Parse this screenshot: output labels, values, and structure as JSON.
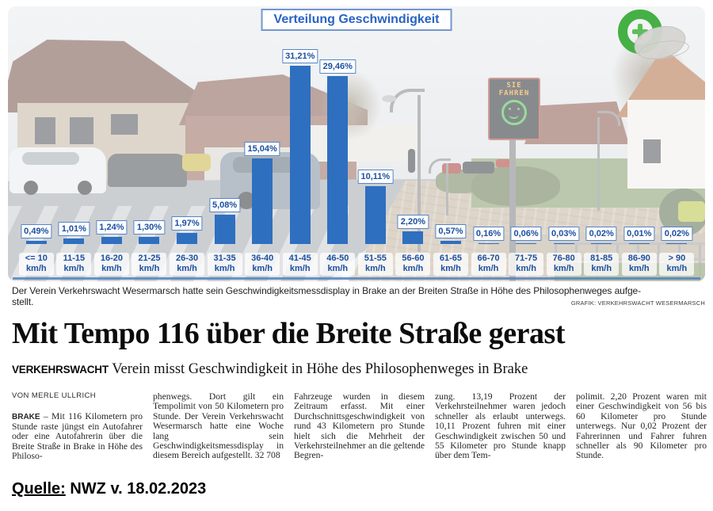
{
  "chart_data": {
    "type": "bar",
    "title": "Verteilung Geschwindigkeit",
    "categories": [
      "<= 10",
      "11-15",
      "16-20",
      "21-25",
      "26-30",
      "31-35",
      "36-40",
      "41-45",
      "46-50",
      "51-55",
      "56-60",
      "61-65",
      "66-70",
      "71-75",
      "76-80",
      "81-85",
      "86-90",
      "> 90"
    ],
    "unit": "km/h",
    "values": [
      0.49,
      1.01,
      1.24,
      1.3,
      1.97,
      5.08,
      15.04,
      31.21,
      29.46,
      10.11,
      2.2,
      0.57,
      0.16,
      0.06,
      0.03,
      0.02,
      0.01,
      0.02
    ],
    "value_labels": [
      "0,49%",
      "1,01%",
      "1,24%",
      "1,30%",
      "1,97%",
      "5,08%",
      "15,04%",
      "31,21%",
      "29,46%",
      "10,11%",
      "2,20%",
      "0,57%",
      "0,16%",
      "0,06%",
      "0,03%",
      "0,02%",
      "0,01%",
      "0,02%"
    ],
    "xlabel": "",
    "ylabel": "",
    "legend": false,
    "grid": false,
    "bar_color": "#2e6fc0",
    "label_color": "#1d4fa0"
  },
  "photo": {
    "caption_line1": "Der Verein Verkehrswacht Wesermarsch hatte sein Geschwindigkeitsmessdisplay in Brake an der Breiten Straße in Höhe des Philosophenweges aufge-",
    "caption_line2": "stellt.",
    "credit": "GRAFIK: VERKEHRSWACHT WESERMARSCH",
    "speed_sign": {
      "line1": "SIE",
      "line2": "FAHREN"
    }
  },
  "article": {
    "headline": "Mit Tempo 116 über die Breite Straße gerast",
    "kicker": "VERKEHRSWACHT",
    "subhead": " Verein misst Geschwindigkeit in Höhe des Philosophenweges in Brake",
    "byline": "VON MERLE ULLRICH",
    "lead_location": "BRAKE",
    "lead_text": "– Mit 116 Kilometern pro Stunde raste jüngst ein Autofahrer oder eine Autofahrerin über die Breite Straße in Brake in Höhe des Philoso-",
    "columns": [
      "phenwegs. Dort gilt ein Tempolimit von 50 Kilometern pro Stunde. Der Verein Verkehrswacht Wesermarsch hatte eine Woche lang sein Geschwindigkeitsmessdisplay in diesem Bereich aufgestellt. 32 708",
      "Fahrzeuge wurden in diesem Zeitraum erfasst. Mit einer Durchschnittsgeschwindigkeit von rund 43 Kilometern pro Stunde hielt sich die Mehrheit der Verkehrsteilnehmer an die geltende Begren-",
      "zung. 13,19 Prozent der Verkehrsteilnehmer waren jedoch schneller als erlaubt unterwegs. 10,11 Prozent fuhren mit einer Geschwindigkeit zwischen 50 und 55 Kilometer pro Stunde knapp über dem Tem-",
      "polimit. 2,20 Prozent waren mit einer Geschwindigkeit von 56 bis 60 Kilometer pro Stunde unterwegs. Nur 0,02 Prozent der Fahrerinnen und Fahrer fuhren schneller als 90 Kilometer pro Stunde."
    ]
  },
  "source": {
    "label": "Quelle:",
    "text": " NWZ v. 18.02.2023"
  }
}
